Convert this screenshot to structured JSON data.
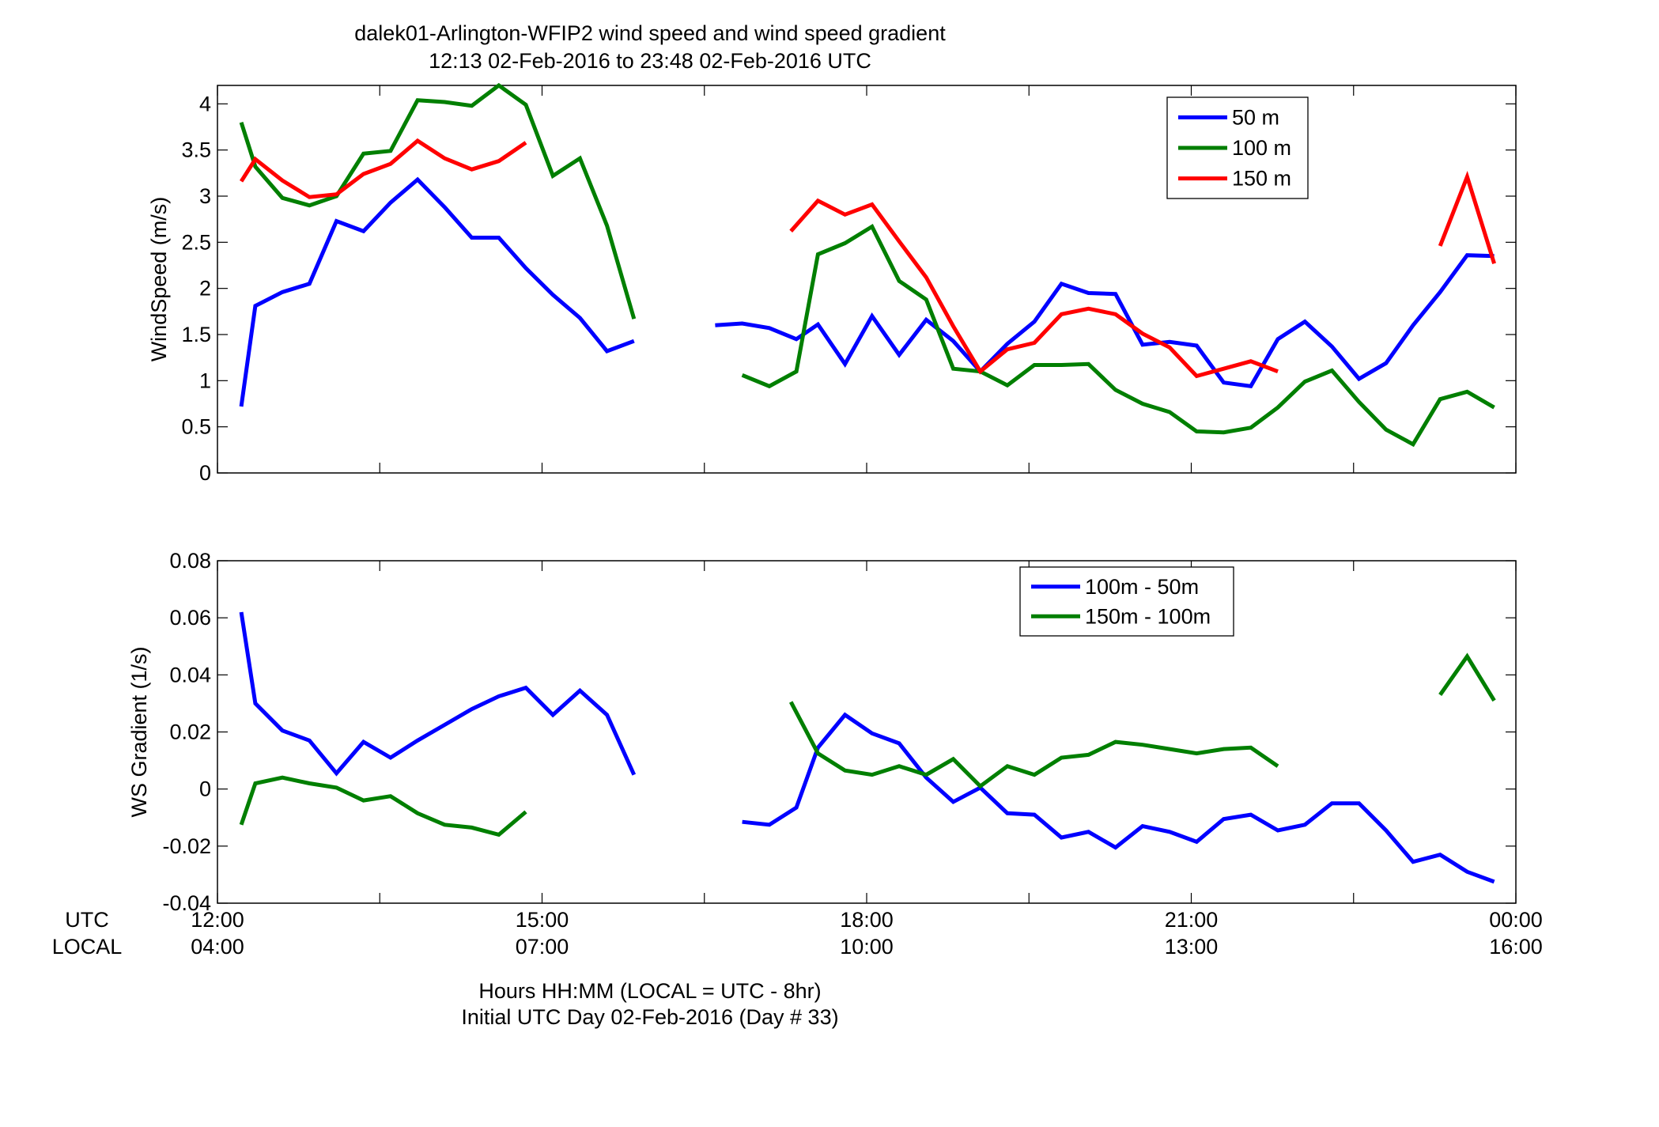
{
  "title": "dalek01-Arlington-WFIP2  wind speed and wind speed gradient",
  "subtitle": "12:13 02-Feb-2016 to 23:48 02-Feb-2016  UTC",
  "row_labels": {
    "utc": "UTC",
    "local": "LOCAL"
  },
  "xlabel_line1": "Hours HH:MM  (LOCAL = UTC - 8hr)",
  "xlabel_line2": "Initial UTC Day 02-Feb-2016 (Day # 33)",
  "x_ticks": {
    "values": [
      12,
      15,
      18,
      21,
      24
    ],
    "utc": [
      "12:00",
      "15:00",
      "18:00",
      "21:00",
      "00:00"
    ],
    "local": [
      "04:00",
      "07:00",
      "10:00",
      "13:00",
      "16:00"
    ]
  },
  "colors": {
    "blue": "#0000ff",
    "green": "#007f00",
    "red": "#ff0000"
  },
  "chart_data": [
    {
      "type": "line",
      "ylabel": "WindSpeed (m/s)",
      "xlim": [
        12,
        24
      ],
      "ylim": [
        0,
        4.2
      ],
      "yticks": [
        0,
        0.5,
        1,
        1.5,
        2,
        2.5,
        3,
        3.5,
        4
      ],
      "ytick_labels": [
        "0",
        "0.5",
        "1",
        "1.5",
        "2",
        "2.5",
        "3",
        "3.5",
        "4"
      ],
      "legend_position": "top-right",
      "grid": false,
      "series": [
        {
          "name": "50 m",
          "color": "#0000ff",
          "segments": [
            [
              [
                12.22,
                0.72
              ],
              [
                12.35,
                1.81
              ],
              [
                12.6,
                1.96
              ],
              [
                12.85,
                2.05
              ],
              [
                13.1,
                2.73
              ],
              [
                13.35,
                2.62
              ],
              [
                13.6,
                2.93
              ],
              [
                13.85,
                3.18
              ],
              [
                14.1,
                2.88
              ],
              [
                14.35,
                2.55
              ],
              [
                14.6,
                2.55
              ],
              [
                14.85,
                2.22
              ],
              [
                15.1,
                1.93
              ],
              [
                15.35,
                1.68
              ],
              [
                15.6,
                1.32
              ],
              [
                15.85,
                1.43
              ]
            ],
            [
              [
                16.6,
                1.6
              ],
              [
                16.85,
                1.62
              ],
              [
                17.1,
                1.57
              ],
              [
                17.35,
                1.45
              ],
              [
                17.55,
                1.61
              ],
              [
                17.8,
                1.18
              ],
              [
                18.05,
                1.7
              ],
              [
                18.3,
                1.28
              ],
              [
                18.55,
                1.66
              ],
              [
                18.8,
                1.43
              ],
              [
                19.05,
                1.1
              ],
              [
                19.3,
                1.4
              ],
              [
                19.55,
                1.64
              ],
              [
                19.8,
                2.05
              ],
              [
                20.05,
                1.95
              ],
              [
                20.3,
                1.94
              ],
              [
                20.55,
                1.39
              ],
              [
                20.8,
                1.42
              ],
              [
                21.05,
                1.38
              ],
              [
                21.3,
                0.98
              ],
              [
                21.55,
                0.94
              ],
              [
                21.8,
                1.45
              ],
              [
                22.05,
                1.64
              ],
              [
                22.3,
                1.37
              ],
              [
                22.55,
                1.02
              ],
              [
                22.8,
                1.19
              ],
              [
                23.05,
                1.6
              ],
              [
                23.3,
                1.96
              ],
              [
                23.55,
                2.36
              ],
              [
                23.8,
                2.35
              ]
            ]
          ]
        },
        {
          "name": "100 m",
          "color": "#007f00",
          "segments": [
            [
              [
                12.22,
                3.8
              ],
              [
                12.35,
                3.32
              ],
              [
                12.6,
                2.98
              ],
              [
                12.85,
                2.9
              ],
              [
                13.1,
                3.0
              ],
              [
                13.35,
                3.46
              ],
              [
                13.6,
                3.49
              ],
              [
                13.85,
                4.04
              ],
              [
                14.1,
                4.02
              ],
              [
                14.35,
                3.98
              ],
              [
                14.6,
                4.2
              ],
              [
                14.85,
                3.99
              ],
              [
                15.1,
                3.22
              ],
              [
                15.35,
                3.41
              ],
              [
                15.6,
                2.68
              ],
              [
                15.85,
                1.67
              ]
            ],
            [
              [
                16.85,
                1.06
              ],
              [
                17.1,
                0.94
              ],
              [
                17.35,
                1.1
              ],
              [
                17.55,
                2.37
              ],
              [
                17.8,
                2.49
              ],
              [
                18.05,
                2.67
              ],
              [
                18.3,
                2.08
              ],
              [
                18.55,
                1.88
              ],
              [
                18.8,
                1.13
              ],
              [
                19.05,
                1.1
              ],
              [
                19.3,
                0.95
              ],
              [
                19.55,
                1.17
              ],
              [
                19.8,
                1.17
              ],
              [
                20.05,
                1.18
              ],
              [
                20.3,
                0.9
              ],
              [
                20.55,
                0.75
              ],
              [
                20.8,
                0.66
              ],
              [
                21.05,
                0.45
              ],
              [
                21.3,
                0.44
              ],
              [
                21.55,
                0.49
              ],
              [
                21.8,
                0.71
              ],
              [
                22.05,
                0.99
              ],
              [
                22.3,
                1.11
              ],
              [
                22.55,
                0.77
              ],
              [
                22.8,
                0.47
              ],
              [
                23.05,
                0.31
              ],
              [
                23.3,
                0.8
              ],
              [
                23.55,
                0.88
              ],
              [
                23.8,
                0.71
              ]
            ]
          ]
        },
        {
          "name": "150 m",
          "color": "#ff0000",
          "segments": [
            [
              [
                12.22,
                3.16
              ],
              [
                12.35,
                3.4
              ],
              [
                12.6,
                3.17
              ],
              [
                12.85,
                2.99
              ],
              [
                13.1,
                3.02
              ],
              [
                13.35,
                3.24
              ],
              [
                13.6,
                3.35
              ],
              [
                13.85,
                3.6
              ],
              [
                14.1,
                3.41
              ],
              [
                14.35,
                3.29
              ],
              [
                14.6,
                3.38
              ],
              [
                14.85,
                3.58
              ]
            ],
            [
              [
                17.3,
                2.62
              ],
              [
                17.55,
                2.95
              ],
              [
                17.8,
                2.8
              ],
              [
                18.05,
                2.91
              ],
              [
                18.3,
                2.51
              ],
              [
                18.55,
                2.12
              ],
              [
                18.8,
                1.59
              ],
              [
                19.05,
                1.1
              ],
              [
                19.3,
                1.34
              ],
              [
                19.55,
                1.41
              ],
              [
                19.8,
                1.72
              ],
              [
                20.05,
                1.78
              ],
              [
                20.3,
                1.72
              ],
              [
                20.55,
                1.51
              ],
              [
                20.8,
                1.36
              ],
              [
                21.05,
                1.05
              ],
              [
                21.3,
                1.13
              ],
              [
                21.55,
                1.21
              ],
              [
                21.8,
                1.1
              ]
            ],
            [
              [
                23.3,
                2.46
              ],
              [
                23.55,
                3.21
              ],
              [
                23.8,
                2.27
              ]
            ]
          ]
        }
      ]
    },
    {
      "type": "line",
      "ylabel": "WS Gradient (1/s)",
      "xlim": [
        12,
        24
      ],
      "ylim": [
        -0.04,
        0.08
      ],
      "yticks": [
        -0.04,
        -0.02,
        0,
        0.02,
        0.04,
        0.06,
        0.08
      ],
      "ytick_labels": [
        "-0.04",
        "-0.02",
        "0",
        "0.02",
        "0.04",
        "0.06",
        "0.08"
      ],
      "legend_position": "top-right",
      "grid": false,
      "series": [
        {
          "name": "100m - 50m",
          "color": "#0000ff",
          "segments": [
            [
              [
                12.22,
                0.062
              ],
              [
                12.35,
                0.03
              ],
              [
                12.6,
                0.0205
              ],
              [
                12.85,
                0.017
              ],
              [
                13.1,
                0.0055
              ],
              [
                13.35,
                0.0165
              ],
              [
                13.6,
                0.011
              ],
              [
                13.85,
                0.017
              ],
              [
                14.1,
                0.0225
              ],
              [
                14.35,
                0.028
              ],
              [
                14.6,
                0.0325
              ],
              [
                14.85,
                0.0355
              ],
              [
                15.1,
                0.026
              ],
              [
                15.35,
                0.0345
              ],
              [
                15.6,
                0.026
              ],
              [
                15.85,
                0.005
              ]
            ],
            [
              [
                16.85,
                -0.0115
              ],
              [
                17.1,
                -0.0125
              ],
              [
                17.35,
                -0.0065
              ],
              [
                17.55,
                0.0145
              ],
              [
                17.8,
                0.026
              ],
              [
                18.05,
                0.0195
              ],
              [
                18.3,
                0.016
              ],
              [
                18.55,
                0.004
              ],
              [
                18.8,
                -0.0045
              ],
              [
                19.05,
                0.0005
              ],
              [
                19.3,
                -0.0085
              ],
              [
                19.55,
                -0.009
              ],
              [
                19.8,
                -0.017
              ],
              [
                20.05,
                -0.015
              ],
              [
                20.3,
                -0.0205
              ],
              [
                20.55,
                -0.013
              ],
              [
                20.8,
                -0.015
              ],
              [
                21.05,
                -0.0185
              ],
              [
                21.3,
                -0.0105
              ],
              [
                21.55,
                -0.009
              ],
              [
                21.8,
                -0.0145
              ],
              [
                22.05,
                -0.0125
              ],
              [
                22.3,
                -0.005
              ],
              [
                22.55,
                -0.005
              ],
              [
                22.8,
                -0.0145
              ],
              [
                23.05,
                -0.0255
              ],
              [
                23.3,
                -0.023
              ],
              [
                23.55,
                -0.029
              ],
              [
                23.8,
                -0.0325
              ]
            ]
          ]
        },
        {
          "name": "150m - 100m",
          "color": "#007f00",
          "segments": [
            [
              [
                12.22,
                -0.0125
              ],
              [
                12.35,
                0.002
              ],
              [
                12.6,
                0.004
              ],
              [
                12.85,
                0.002
              ],
              [
                13.1,
                0.0005
              ],
              [
                13.35,
                -0.004
              ],
              [
                13.6,
                -0.0025
              ],
              [
                13.85,
                -0.0085
              ],
              [
                14.1,
                -0.0125
              ],
              [
                14.35,
                -0.0135
              ],
              [
                14.6,
                -0.016
              ],
              [
                14.85,
                -0.008
              ]
            ],
            [
              [
                17.3,
                0.0305
              ],
              [
                17.55,
                0.0125
              ],
              [
                17.8,
                0.0065
              ],
              [
                18.05,
                0.005
              ],
              [
                18.3,
                0.008
              ],
              [
                18.55,
                0.005
              ],
              [
                18.8,
                0.0105
              ],
              [
                19.05,
                0.001
              ],
              [
                19.3,
                0.008
              ],
              [
                19.55,
                0.005
              ],
              [
                19.8,
                0.011
              ],
              [
                20.05,
                0.012
              ],
              [
                20.3,
                0.0165
              ],
              [
                20.55,
                0.0155
              ],
              [
                20.8,
                0.014
              ],
              [
                21.05,
                0.0125
              ],
              [
                21.3,
                0.014
              ],
              [
                21.55,
                0.0145
              ],
              [
                21.8,
                0.008
              ]
            ],
            [
              [
                23.3,
                0.033
              ],
              [
                23.55,
                0.0465
              ],
              [
                23.8,
                0.031
              ]
            ]
          ]
        }
      ]
    }
  ]
}
